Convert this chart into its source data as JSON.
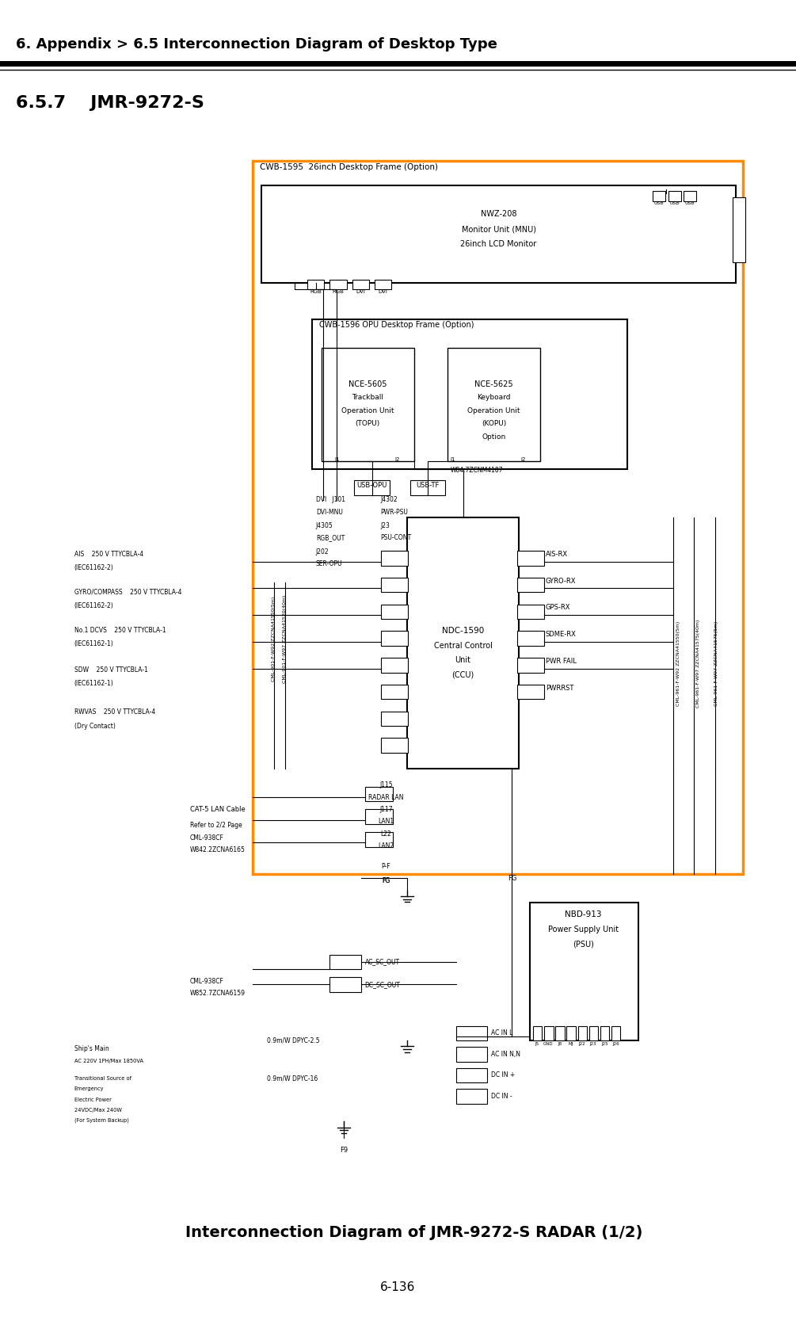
{
  "header_text": "6. Appendix > 6.5 Interconnection Diagram of Desktop Type",
  "section_title": "6.5.7    JMR-9272-S",
  "caption": "Interconnection Diagram of JMR-9272-S RADAR (1/2)",
  "page_number": "6-136",
  "bg_color": "#ffffff",
  "header_fontsize": 13,
  "section_fontsize": 16,
  "caption_fontsize": 14,
  "page_fontsize": 11
}
